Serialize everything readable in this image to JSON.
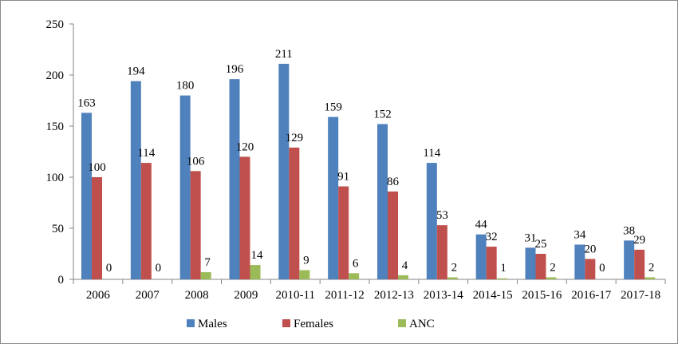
{
  "chart_data": {
    "type": "bar",
    "categories": [
      "2006",
      "2007",
      "2008",
      "2009",
      "2010-11",
      "2011-12",
      "2012-13",
      "2013-14",
      "2014-15",
      "2015-16",
      "2016-17",
      "2017-18"
    ],
    "series": [
      {
        "name": "Males",
        "color": "#4F81BD",
        "values": [
          163,
          194,
          180,
          196,
          211,
          159,
          152,
          114,
          44,
          31,
          34,
          38
        ]
      },
      {
        "name": "Females",
        "color": "#C0504D",
        "values": [
          100,
          114,
          106,
          120,
          129,
          91,
          86,
          53,
          32,
          25,
          20,
          29
        ]
      },
      {
        "name": "ANC",
        "color": "#9BBB59",
        "values": [
          0,
          0,
          7,
          14,
          9,
          6,
          4,
          2,
          1,
          2,
          0,
          2
        ]
      }
    ],
    "ylim": [
      0,
      250
    ],
    "yticks": [
      0,
      50,
      100,
      150,
      200,
      250
    ],
    "ytick_labels": [
      "0",
      "50",
      "100",
      "150",
      "200",
      "250"
    ],
    "grid": false,
    "legend_position": "bottom",
    "data_labels_shown": {
      "Males": "all",
      "Females": "all",
      "ANC": "all except first two"
    },
    "anc_label_texts": [
      "0",
      "0",
      "7",
      "14",
      "9",
      "6",
      "4",
      "2",
      "1",
      "2",
      "0",
      "2"
    ]
  }
}
